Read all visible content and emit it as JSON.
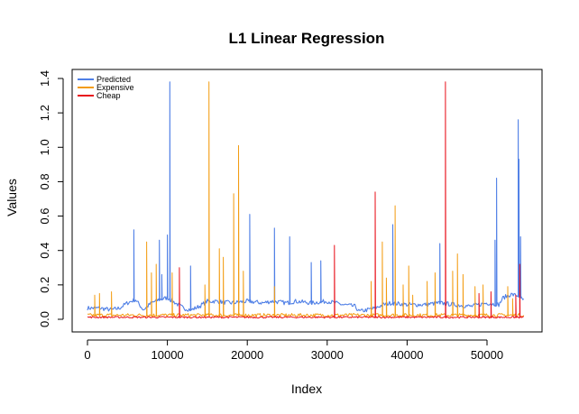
{
  "chart_data": {
    "type": "line",
    "title": "L1 Linear Regression",
    "xlabel": "Index",
    "ylabel": "Values",
    "xlim": [
      0,
      54700
    ],
    "ylim": [
      0,
      1.4
    ],
    "x_ticks": [
      0,
      10000,
      20000,
      30000,
      40000,
      50000
    ],
    "y_ticks": [
      0.0,
      0.2,
      0.4,
      0.6,
      0.8,
      1.0,
      1.2,
      1.4
    ],
    "x_tick_labels": [
      "0",
      "10000",
      "20000",
      "30000",
      "40000",
      "50000"
    ],
    "y_tick_labels": [
      "0.0",
      "0.2",
      "0.4",
      "0.6",
      "0.8",
      "1.0",
      "1.2",
      "1.4"
    ],
    "legend": {
      "position": "top-left"
    },
    "colors": {
      "Predicted": "#4f7fe6",
      "Expensive": "#f39c12",
      "Cheap": "#e8101a"
    },
    "series": [
      {
        "name": "Predicted",
        "baseline_points": [
          [
            0,
            0.06
          ],
          [
            1500,
            0.06
          ],
          [
            3000,
            0.05
          ],
          [
            4000,
            0.06
          ],
          [
            5000,
            0.09
          ],
          [
            6000,
            0.11
          ],
          [
            7000,
            0.05
          ],
          [
            8000,
            0.09
          ],
          [
            9000,
            0.11
          ],
          [
            10000,
            0.12
          ],
          [
            11000,
            0.09
          ],
          [
            12000,
            0.06
          ],
          [
            13000,
            0.05
          ],
          [
            14000,
            0.07
          ],
          [
            15000,
            0.1
          ],
          [
            16000,
            0.1
          ],
          [
            18000,
            0.09
          ],
          [
            20000,
            0.1
          ],
          [
            22000,
            0.09
          ],
          [
            23000,
            0.1
          ],
          [
            25000,
            0.09
          ],
          [
            26000,
            0.1
          ],
          [
            28000,
            0.09
          ],
          [
            30000,
            0.1
          ],
          [
            32000,
            0.08
          ],
          [
            33500,
            0.07
          ],
          [
            34000,
            0.04
          ],
          [
            36000,
            0.06
          ],
          [
            37000,
            0.08
          ],
          [
            38000,
            0.09
          ],
          [
            40000,
            0.08
          ],
          [
            42000,
            0.08
          ],
          [
            44000,
            0.09
          ],
          [
            46000,
            0.08
          ],
          [
            48000,
            0.07
          ],
          [
            50000,
            0.09
          ],
          [
            51500,
            0.08
          ],
          [
            52000,
            0.12
          ],
          [
            53000,
            0.14
          ],
          [
            54000,
            0.13
          ],
          [
            54700,
            0.1
          ]
        ],
        "spikes": [
          [
            5800,
            0.52
          ],
          [
            9000,
            0.46
          ],
          [
            9300,
            0.26
          ],
          [
            10000,
            0.49
          ],
          [
            10300,
            1.38
          ],
          [
            12900,
            0.31
          ],
          [
            20300,
            0.61
          ],
          [
            23400,
            0.53
          ],
          [
            25300,
            0.48
          ],
          [
            28000,
            0.33
          ],
          [
            29200,
            0.34
          ],
          [
            38200,
            0.55
          ],
          [
            44100,
            0.44
          ],
          [
            51000,
            0.46
          ],
          [
            51200,
            0.82
          ],
          [
            53900,
            1.16
          ],
          [
            54000,
            0.93
          ],
          [
            54200,
            0.48
          ]
        ]
      },
      {
        "name": "Expensive",
        "baseline": 0.02,
        "spikes": [
          [
            900,
            0.14
          ],
          [
            1500,
            0.15
          ],
          [
            3000,
            0.16
          ],
          [
            7400,
            0.45
          ],
          [
            8000,
            0.27
          ],
          [
            8600,
            0.32
          ],
          [
            10600,
            0.27
          ],
          [
            14700,
            0.2
          ],
          [
            15200,
            1.38
          ],
          [
            16500,
            0.41
          ],
          [
            17000,
            0.36
          ],
          [
            18300,
            0.73
          ],
          [
            18900,
            1.01
          ],
          [
            19500,
            0.28
          ],
          [
            23400,
            0.19
          ],
          [
            35500,
            0.22
          ],
          [
            36900,
            0.45
          ],
          [
            37400,
            0.24
          ],
          [
            38500,
            0.66
          ],
          [
            39500,
            0.2
          ],
          [
            40200,
            0.31
          ],
          [
            40700,
            0.14
          ],
          [
            42500,
            0.22
          ],
          [
            43500,
            0.27
          ],
          [
            45700,
            0.28
          ],
          [
            46300,
            0.38
          ],
          [
            47000,
            0.26
          ],
          [
            48500,
            0.19
          ],
          [
            49500,
            0.2
          ],
          [
            52600,
            0.19
          ],
          [
            53200,
            0.12
          ]
        ]
      },
      {
        "name": "Cheap",
        "baseline": 0.01,
        "spikes": [
          [
            11500,
            0.3
          ],
          [
            30900,
            0.43
          ],
          [
            36000,
            0.74
          ],
          [
            44800,
            1.38
          ],
          [
            49000,
            0.15
          ],
          [
            50500,
            0.16
          ],
          [
            53600,
            0.14
          ],
          [
            54100,
            0.32
          ]
        ]
      }
    ]
  }
}
